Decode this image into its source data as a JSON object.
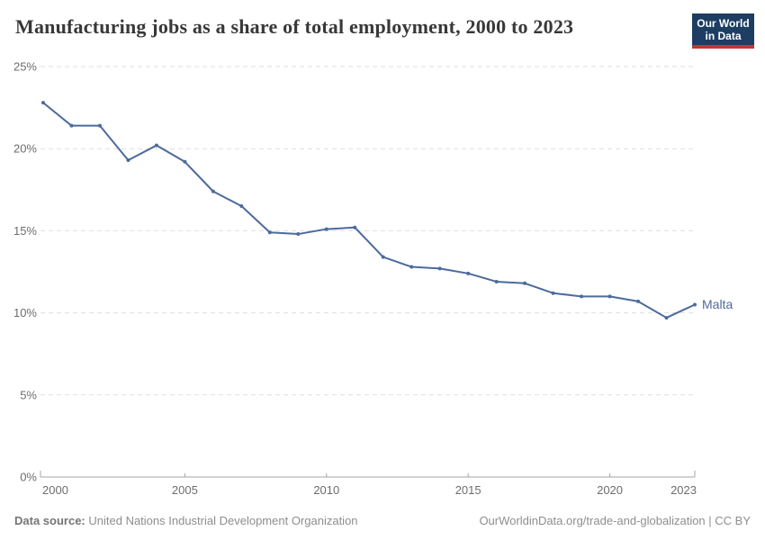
{
  "header": {
    "title": "Manufacturing jobs as a share of total employment, 2000 to 2023",
    "logo": {
      "line1": "Our World",
      "line2": "in Data",
      "bg_color": "#1d3d63",
      "stripe_color": "#c0392b"
    }
  },
  "chart_data": {
    "type": "line",
    "title": "Manufacturing jobs as a share of total employment, 2000 to 2023",
    "x": [
      2000,
      2001,
      2002,
      2003,
      2004,
      2005,
      2006,
      2007,
      2008,
      2009,
      2010,
      2011,
      2012,
      2013,
      2014,
      2015,
      2016,
      2017,
      2018,
      2019,
      2020,
      2021,
      2022,
      2023
    ],
    "series": [
      {
        "name": "Malta",
        "color": "#4C6A9C",
        "values": [
          22.8,
          21.4,
          21.4,
          19.3,
          20.2,
          19.2,
          17.4,
          16.5,
          14.9,
          14.8,
          15.1,
          15.2,
          13.4,
          12.8,
          12.7,
          12.4,
          11.9,
          11.8,
          11.2,
          11.0,
          11.0,
          10.7,
          9.7,
          10.5
        ]
      }
    ],
    "xlim": [
      2000,
      2023
    ],
    "ylim": [
      0,
      25
    ],
    "y_ticks": [
      0,
      5,
      10,
      15,
      20,
      25
    ],
    "y_tick_labels": [
      "0%",
      "5%",
      "10%",
      "15%",
      "20%",
      "25%"
    ],
    "x_tick_years": [
      2000,
      2005,
      2010,
      2015,
      2020,
      2023
    ],
    "x_tick_labels": [
      "2000",
      "2005",
      "2010",
      "2015",
      "2020",
      "2023"
    ],
    "grid": true,
    "grid_color": "#dedede",
    "axis_color": "#a5a5a5",
    "tick_label_color": "#6d6d6d",
    "legend_position": "line-end-label"
  },
  "footer": {
    "source_label": "Data source:",
    "source_value": "United Nations Industrial Development Organization",
    "link_text": "OurWorldinData.org/trade-and-globalization | CC BY"
  }
}
